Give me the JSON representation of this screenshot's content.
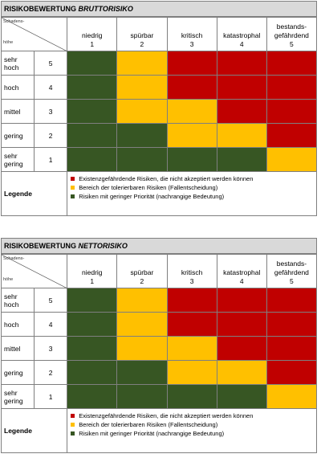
{
  "colors": {
    "green": "#375623",
    "yellow": "#ffc000",
    "red": "#c00000"
  },
  "corner": {
    "top": "Schadens-",
    "bottom": "höhe"
  },
  "columns": [
    {
      "label": "niedrig",
      "num": "1"
    },
    {
      "label": "spürbar",
      "num": "2"
    },
    {
      "label": "kritisch",
      "num": "3"
    },
    {
      "label": "katastrophal",
      "num": "4"
    },
    {
      "label": "bestands-\ngefährdend",
      "num": "5"
    }
  ],
  "rows": [
    {
      "label": "sehr hoch",
      "num": "5"
    },
    {
      "label": "hoch",
      "num": "4"
    },
    {
      "label": "mittel",
      "num": "3"
    },
    {
      "label": "gering",
      "num": "2"
    },
    {
      "label": "sehr gering",
      "num": "1"
    }
  ],
  "matrix": [
    [
      "green",
      "yellow",
      "red",
      "red",
      "red"
    ],
    [
      "green",
      "yellow",
      "red",
      "red",
      "red"
    ],
    [
      "green",
      "yellow",
      "yellow",
      "red",
      "red"
    ],
    [
      "green",
      "green",
      "yellow",
      "yellow",
      "red"
    ],
    [
      "green",
      "green",
      "green",
      "green",
      "yellow"
    ]
  ],
  "legend": {
    "label": "Legende",
    "items": [
      {
        "color": "red",
        "text": "Existenzgefährdende Risiken, die nicht akzeptiert werden können"
      },
      {
        "color": "yellow",
        "text": "Bereich der tolerierbaren Risiken (Fallentscheidung)"
      },
      {
        "color": "green",
        "text": "Risiken mit geringer Priorität (nachrangige Bedeutung)"
      }
    ]
  },
  "sections": [
    {
      "title_prefix": "RISIKOBEWERTUNG ",
      "title_italic": "BRUTTORISIKO"
    },
    {
      "title_prefix": "RISIKOBEWERTUNG ",
      "title_italic": "NETTORISIKO"
    }
  ]
}
